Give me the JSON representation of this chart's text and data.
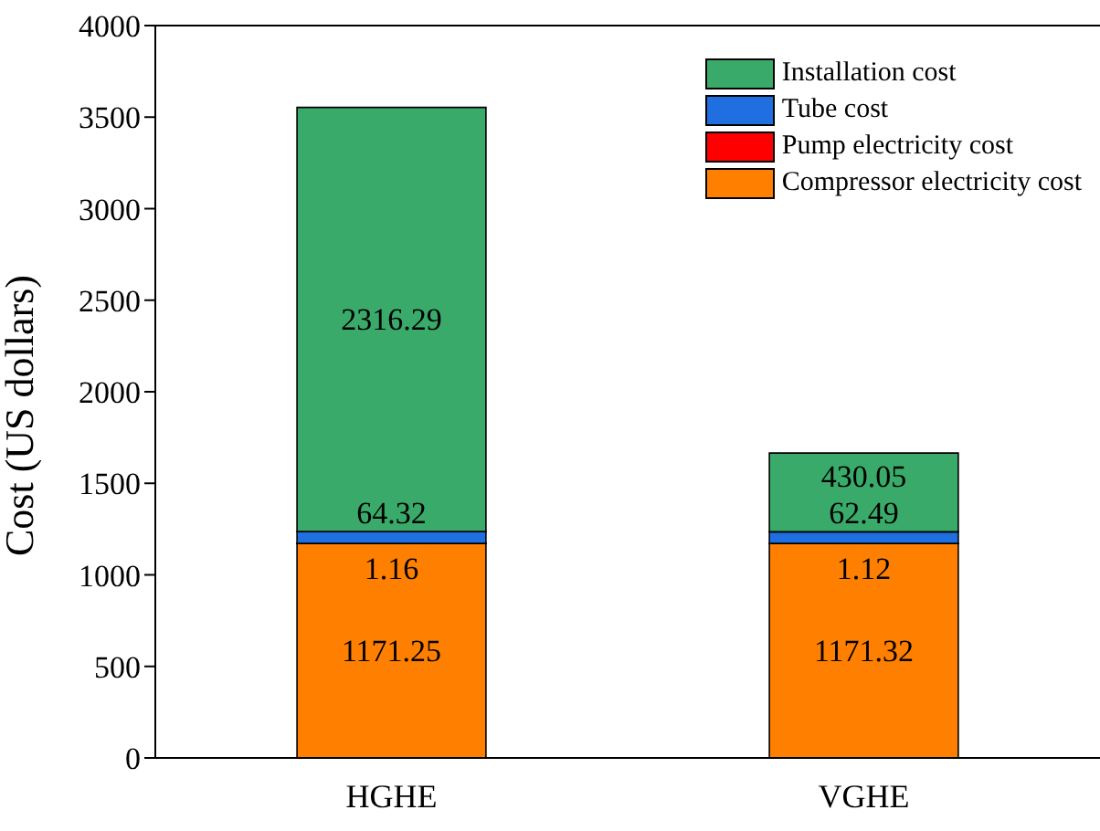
{
  "chart_data": {
    "type": "bar",
    "stacked": true,
    "ylabel": "Cost (US dollars)",
    "categories": [
      "HGHE",
      "VGHE"
    ],
    "series": [
      {
        "name": "Compressor electricity cost",
        "color": "#ff7f00",
        "values": [
          1171.25,
          1171.32
        ]
      },
      {
        "name": "Pump electricity cost",
        "color": "#ff0000",
        "values": [
          1.16,
          1.12
        ]
      },
      {
        "name": "Tube cost",
        "color": "#1f6fe0",
        "values": [
          64.32,
          62.49
        ]
      },
      {
        "name": "Installation cost",
        "color": "#3aaa6a",
        "values": [
          2316.29,
          430.05
        ]
      }
    ],
    "ylim": [
      0,
      4000
    ],
    "yticks": [
      0,
      500,
      1000,
      1500,
      2000,
      2500,
      3000,
      3500,
      4000
    ],
    "grid": false,
    "legend": "top right",
    "data_labels": true
  }
}
